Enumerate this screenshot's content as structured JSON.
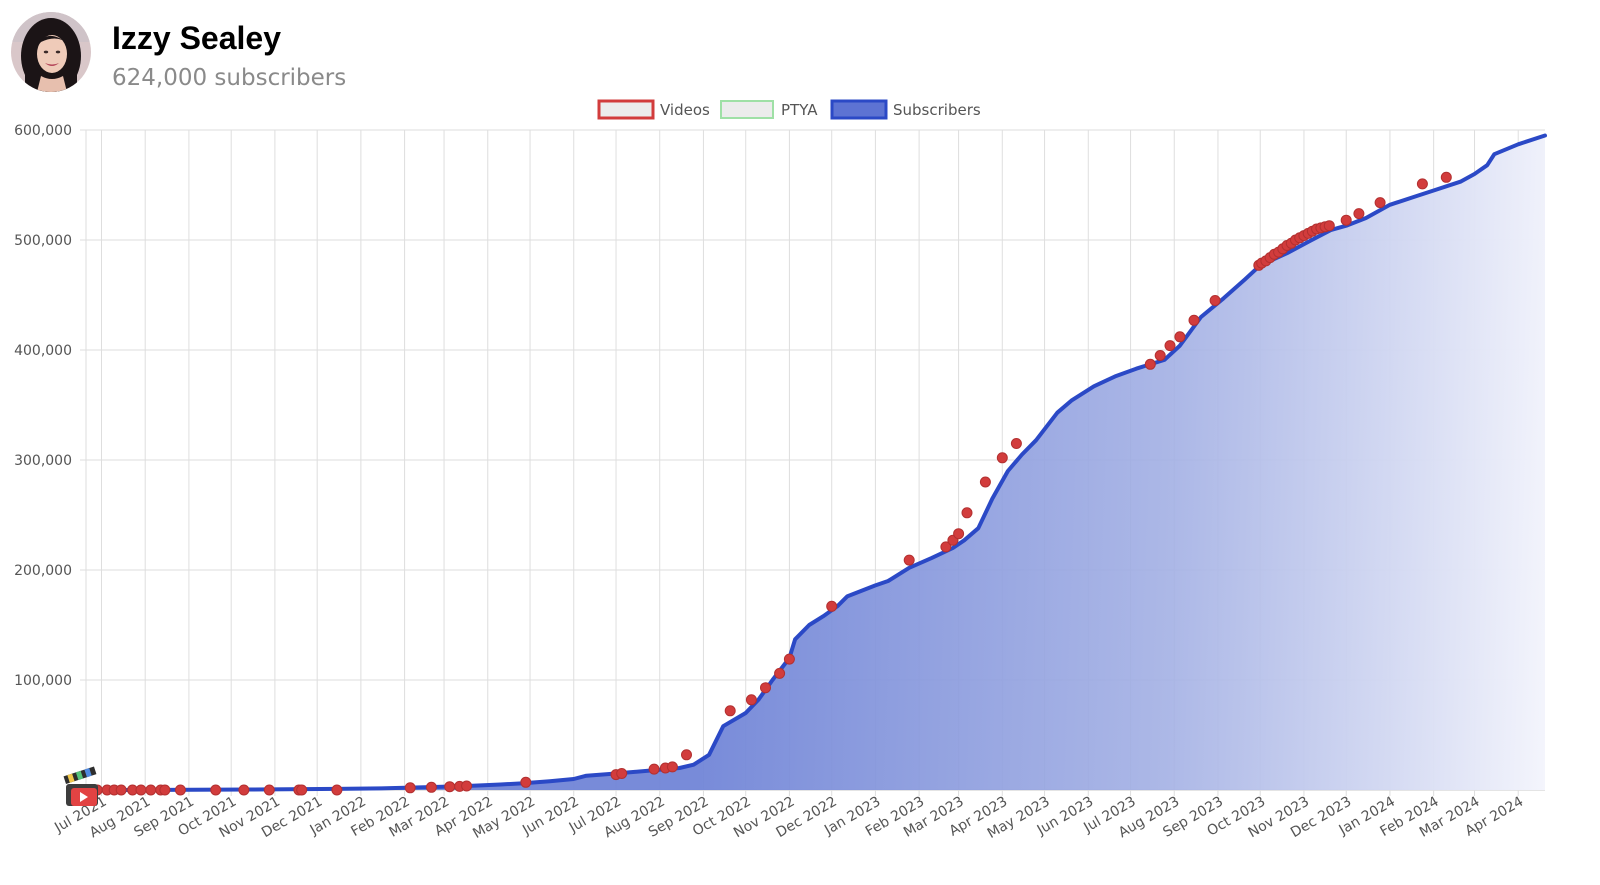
{
  "channel": {
    "name": "Izzy Sealey",
    "subscribers_label": "624,000 subscribers"
  },
  "colors": {
    "videos_marker": "#d23c3c",
    "videos_fill": "#ececec",
    "ptya_border": "#9fe0a6",
    "ptya_fill": "#ececec",
    "subscribers_line": "#2b49c6",
    "subscribers_fill": "#5d73d3",
    "grid": "#dedede",
    "tick_text": "#555555"
  },
  "chart_data": {
    "type": "line",
    "legend": [
      "Videos",
      "PTYA",
      "Subscribers"
    ],
    "legend_position": "top-center",
    "grid": true,
    "area_fill": true,
    "ylim": [
      0,
      600000
    ],
    "y_ticks": [
      "100,000",
      "200,000",
      "300,000",
      "400,000",
      "500,000",
      "600,000"
    ],
    "y_tick_values": [
      100000,
      200000,
      300000,
      400000,
      500000,
      600000
    ],
    "xlim": [
      "2021-06-20",
      "2024-04-20"
    ],
    "x_ticks": [
      "Jul 2021",
      "Aug 2021",
      "Sep 2021",
      "Oct 2021",
      "Nov 2021",
      "Dec 2021",
      "Jan 2022",
      "Feb 2022",
      "Mar 2022",
      "Apr 2022",
      "May 2022",
      "Jun 2022",
      "Jul 2022",
      "Aug 2022",
      "Sep 2022",
      "Oct 2022",
      "Nov 2022",
      "Dec 2022",
      "Jan 2023",
      "Feb 2023",
      "Mar 2023",
      "Apr 2023",
      "May 2023",
      "Jun 2023",
      "Jul 2023",
      "Aug 2023",
      "Sep 2023",
      "Oct 2023",
      "Nov 2023",
      "Dec 2023",
      "Jan 2024",
      "Feb 2024",
      "Mar 2024",
      "Apr 2024"
    ],
    "x_tick_dates": [
      "2021-07-01",
      "2021-08-01",
      "2021-09-01",
      "2021-10-01",
      "2021-11-01",
      "2021-12-01",
      "2022-01-01",
      "2022-02-01",
      "2022-03-01",
      "2022-04-01",
      "2022-05-01",
      "2022-06-01",
      "2022-07-01",
      "2022-08-01",
      "2022-09-01",
      "2022-10-01",
      "2022-11-01",
      "2022-12-01",
      "2023-01-01",
      "2023-02-01",
      "2023-03-01",
      "2023-04-01",
      "2023-05-01",
      "2023-06-01",
      "2023-07-01",
      "2023-08-01",
      "2023-09-01",
      "2023-10-01",
      "2023-11-01",
      "2023-12-01",
      "2024-01-01",
      "2024-02-01",
      "2024-03-01",
      "2024-04-01"
    ],
    "series": [
      {
        "name": "Subscribers",
        "x": [
          "2021-06-20",
          "2021-08-15",
          "2021-10-15",
          "2021-12-15",
          "2022-01-15",
          "2022-02-15",
          "2022-03-15",
          "2022-04-10",
          "2022-04-25",
          "2022-05-15",
          "2022-06-01",
          "2022-06-10",
          "2022-07-01",
          "2022-07-10",
          "2022-08-15",
          "2022-08-25",
          "2022-09-05",
          "2022-09-15",
          "2022-10-01",
          "2022-10-10",
          "2022-10-20",
          "2022-11-01",
          "2022-11-05",
          "2022-11-15",
          "2022-11-25",
          "2022-12-05",
          "2022-12-12",
          "2023-01-01",
          "2023-01-10",
          "2023-01-25",
          "2023-02-10",
          "2023-02-25",
          "2023-03-05",
          "2023-03-15",
          "2023-03-25",
          "2023-04-05",
          "2023-04-15",
          "2023-04-25",
          "2023-05-10",
          "2023-05-20",
          "2023-06-05",
          "2023-06-20",
          "2023-07-05",
          "2023-07-25",
          "2023-08-05",
          "2023-08-20",
          "2023-09-05",
          "2023-09-20",
          "2023-10-01",
          "2023-10-20",
          "2023-11-05",
          "2023-11-20",
          "2023-12-01",
          "2023-12-15",
          "2024-01-01",
          "2024-01-20",
          "2024-02-01",
          "2024-02-20",
          "2024-03-01",
          "2024-03-10",
          "2024-03-15",
          "2024-04-01",
          "2024-04-20"
        ],
        "y": [
          0,
          100,
          500,
          1000,
          1500,
          2500,
          3500,
          5000,
          6000,
          8000,
          10000,
          13000,
          15000,
          16000,
          20000,
          23000,
          32000,
          58000,
          70000,
          82000,
          100000,
          120000,
          137000,
          150000,
          158000,
          167000,
          176000,
          186000,
          190000,
          202000,
          211000,
          220000,
          227000,
          238000,
          265000,
          290000,
          305000,
          318000,
          343000,
          354000,
          367000,
          376000,
          383000,
          391000,
          404000,
          430000,
          447000,
          464000,
          477000,
          488000,
          499000,
          509000,
          513000,
          520000,
          532000,
          540000,
          545000,
          553000,
          560000,
          568000,
          578000,
          587000,
          595000
        ]
      },
      {
        "name": "Videos",
        "x": [
          "2021-06-25",
          "2021-06-28",
          "2021-07-05",
          "2021-07-10",
          "2021-07-15",
          "2021-07-23",
          "2021-07-29",
          "2021-08-05",
          "2021-08-12",
          "2021-08-15",
          "2021-08-26",
          "2021-09-20",
          "2021-10-10",
          "2021-10-28",
          "2021-11-18",
          "2021-11-20",
          "2021-12-15",
          "2022-02-05",
          "2022-02-20",
          "2022-03-05",
          "2022-03-12",
          "2022-03-17",
          "2022-04-28",
          "2022-07-01",
          "2022-07-05",
          "2022-07-28",
          "2022-08-05",
          "2022-08-10",
          "2022-08-20",
          "2022-09-20",
          "2022-10-05",
          "2022-10-15",
          "2022-10-25",
          "2022-11-01",
          "2022-12-01",
          "2023-01-25",
          "2023-02-20",
          "2023-02-25",
          "2023-03-01",
          "2023-03-07",
          "2023-03-20",
          "2023-04-01",
          "2023-04-11",
          "2023-07-15",
          "2023-07-22",
          "2023-07-29",
          "2023-08-05",
          "2023-08-15",
          "2023-08-30",
          "2023-09-30",
          "2023-10-02",
          "2023-10-05",
          "2023-10-08",
          "2023-10-11",
          "2023-10-14",
          "2023-10-17",
          "2023-10-20",
          "2023-10-23",
          "2023-10-26",
          "2023-10-29",
          "2023-11-01",
          "2023-11-04",
          "2023-11-07",
          "2023-11-10",
          "2023-11-13",
          "2023-11-16",
          "2023-11-19",
          "2023-12-01",
          "2023-12-10",
          "2023-12-25",
          "2024-01-24",
          "2024-02-10"
        ],
        "y": [
          0,
          0,
          0,
          0,
          0,
          0,
          0,
          0,
          0,
          0,
          0,
          0,
          0,
          0,
          0,
          0,
          0,
          2000,
          2500,
          3000,
          3300,
          3600,
          7000,
          14000,
          15000,
          19000,
          20000,
          21000,
          32000,
          72000,
          82000,
          93000,
          106000,
          119000,
          167000,
          209000,
          221000,
          227000,
          233000,
          252000,
          280000,
          302000,
          315000,
          387000,
          395000,
          404000,
          412000,
          427000,
          445000,
          477000,
          479000,
          481000,
          484000,
          487000,
          489000,
          492000,
          495000,
          497000,
          500000,
          502000,
          504000,
          506000,
          508000,
          510000,
          511000,
          512000,
          513000,
          518000,
          524000,
          534000,
          551000,
          557000
        ]
      }
    ]
  }
}
